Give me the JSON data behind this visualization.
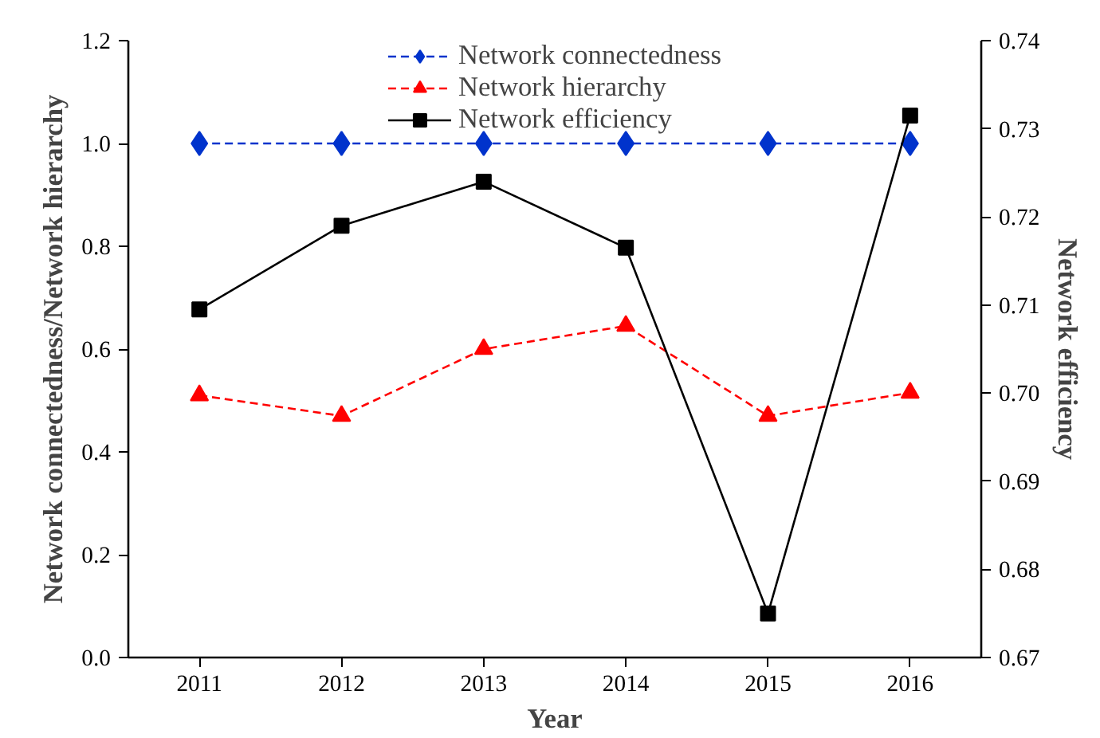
{
  "chart_data": {
    "type": "line",
    "xlabel": "Year",
    "ylabel": "Network connectedness/Network hierarchy",
    "y2label": "Network efficiency",
    "x": [
      2011,
      2012,
      2013,
      2014,
      2015,
      2016
    ],
    "xlim": [
      2010.5,
      2016.5
    ],
    "xticks": [
      2011,
      2012,
      2013,
      2014,
      2015,
      2016
    ],
    "ylim": [
      0,
      1.2
    ],
    "yticks": [
      {
        "value": 0,
        "label": "0.0"
      },
      0.2,
      0.4,
      0.6,
      0.8,
      {
        "value": 1,
        "label": "1.0"
      },
      1.2
    ],
    "y2lim": [
      0.67,
      0.74
    ],
    "y2ticks": [
      0.67,
      0.68,
      0.69,
      {
        "value": 0.7,
        "label": "0.70"
      },
      0.71,
      0.72,
      0.73,
      0.74
    ],
    "grid": false,
    "legend": "top",
    "series": [
      {
        "name": "Network connectedness",
        "color": "#0033cc",
        "marker": "diamond",
        "line_style": "dashed",
        "values": [
          1.0,
          1.0,
          1.0,
          1.0,
          1.0,
          1.0
        ]
      },
      {
        "name": "Network hierarchy",
        "color": "#ff0000",
        "marker": "triangle",
        "line_style": "dashed",
        "values": [
          0.51,
          0.47,
          0.6,
          0.645,
          0.47,
          0.515
        ]
      },
      {
        "name": "Network efficiency",
        "color": "#000000",
        "marker": "square",
        "line_style": "solid",
        "axis": "y2",
        "values": [
          0.7095,
          0.719,
          0.724,
          0.7165,
          0.675,
          0.7315
        ]
      }
    ]
  }
}
